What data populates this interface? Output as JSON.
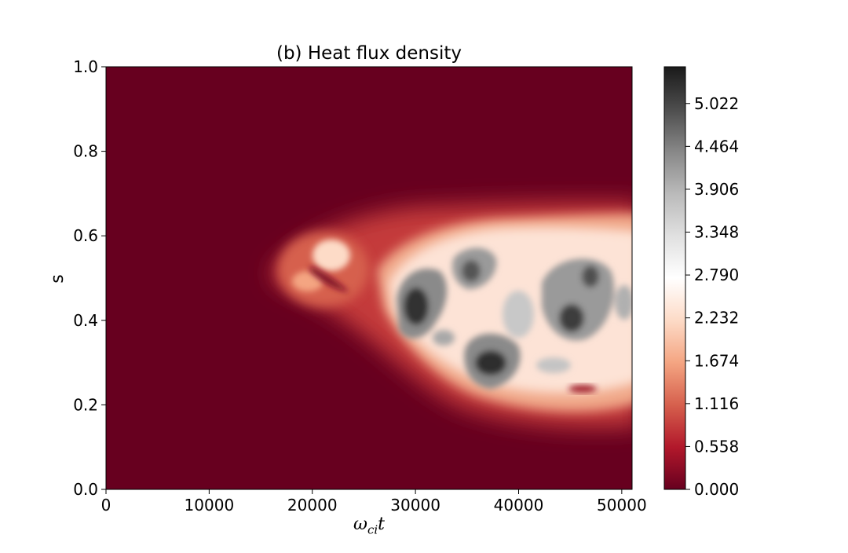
{
  "chart_data": {
    "type": "heatmap",
    "title": "(b) Heat flux density",
    "xlabel": "ω_ci t",
    "xlabel_parts": {
      "symbol": "ω",
      "subscript": "ci",
      "variable": "t"
    },
    "ylabel": "s",
    "xlim": [
      0,
      51000
    ],
    "ylim": [
      0,
      1
    ],
    "x_ticks": [
      {
        "value": 0,
        "label": "0"
      },
      {
        "value": 10000,
        "label": "10000"
      },
      {
        "value": 20000,
        "label": "20000"
      },
      {
        "value": 30000,
        "label": "30000"
      },
      {
        "value": 40000,
        "label": "40000"
      },
      {
        "value": 50000,
        "label": "50000"
      }
    ],
    "y_ticks": [
      {
        "value": 0.0,
        "label": "0.0"
      },
      {
        "value": 0.2,
        "label": "0.2"
      },
      {
        "value": 0.4,
        "label": "0.4"
      },
      {
        "value": 0.6,
        "label": "0.6"
      },
      {
        "value": 0.8,
        "label": "0.8"
      },
      {
        "value": 1.0,
        "label": "1.0"
      }
    ],
    "colorbar": {
      "colormap": "RdGy",
      "range": [
        0,
        5.5
      ],
      "ticks": [
        {
          "value": 0.0,
          "label": "0.000"
        },
        {
          "value": 0.558,
          "label": "0.558"
        },
        {
          "value": 1.116,
          "label": "1.116"
        },
        {
          "value": 1.674,
          "label": "1.674"
        },
        {
          "value": 2.232,
          "label": "2.232"
        },
        {
          "value": 2.79,
          "label": "2.790"
        },
        {
          "value": 3.348,
          "label": "3.348"
        },
        {
          "value": 3.906,
          "label": "3.906"
        },
        {
          "value": 4.464,
          "label": "4.464"
        },
        {
          "value": 5.022,
          "label": "5.022"
        }
      ],
      "color_stops": [
        "#67001f",
        "#b2182b",
        "#d6604d",
        "#f4a582",
        "#fddbc7",
        "#ffffff",
        "#e0e0e0",
        "#bababa",
        "#878787",
        "#4d4d4d",
        "#1a1a1a"
      ]
    },
    "features": [
      {
        "t": 21500,
        "s": 0.52,
        "value": 1.9
      },
      {
        "t": 22500,
        "s": 0.56,
        "value": 2.2
      },
      {
        "t": 20000,
        "s": 0.48,
        "value": 1.6
      },
      {
        "t": 30000,
        "s": 0.44,
        "value": 5.2
      },
      {
        "t": 32000,
        "s": 0.38,
        "value": 3.9
      },
      {
        "t": 35500,
        "s": 0.52,
        "value": 4.2
      },
      {
        "t": 38000,
        "s": 0.3,
        "value": 4.9
      },
      {
        "t": 41000,
        "s": 0.36,
        "value": 3.5
      },
      {
        "t": 45000,
        "s": 0.42,
        "value": 4.0
      },
      {
        "t": 46500,
        "s": 0.48,
        "value": 3.7
      },
      {
        "t": 48500,
        "s": 0.46,
        "value": 3.3
      }
    ]
  }
}
